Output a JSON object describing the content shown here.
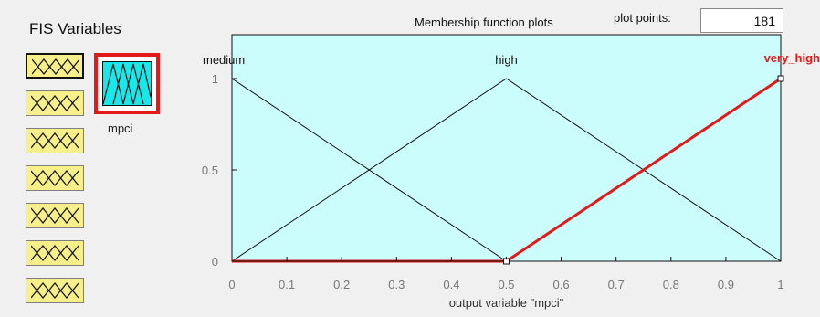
{
  "panel": {
    "title": "FIS Variables",
    "variable_buttons": [
      {
        "name": "input-variable-1"
      },
      {
        "name": "input-variable-2"
      },
      {
        "name": "input-variable-3"
      },
      {
        "name": "input-variable-4"
      },
      {
        "name": "input-variable-5"
      },
      {
        "name": "input-variable-6"
      },
      {
        "name": "input-variable-7"
      }
    ],
    "selected_variable": {
      "label": "mpci",
      "accent": "#e21a1a"
    }
  },
  "header": {
    "title": "Membership function plots",
    "plot_points_label": "plot points:",
    "plot_points_value": "181"
  },
  "chart_data": {
    "type": "line",
    "xlabel": "output variable \"mpci\"",
    "ylabel": "",
    "xlim": [
      0,
      1
    ],
    "ylim": [
      0,
      1
    ],
    "x_ticks": [
      0,
      0.1,
      0.2,
      0.3,
      0.4,
      0.5,
      0.6,
      0.7,
      0.8,
      0.9,
      1
    ],
    "y_ticks": [
      0,
      0.5,
      1
    ],
    "series": [
      {
        "name": "medium",
        "color": "#111111",
        "width": 1,
        "points": [
          [
            0,
            1
          ],
          [
            0.5,
            0
          ],
          [
            1,
            0
          ]
        ]
      },
      {
        "name": "high",
        "color": "#111111",
        "width": 1,
        "points": [
          [
            0,
            0
          ],
          [
            0.5,
            1
          ],
          [
            1,
            0
          ]
        ]
      },
      {
        "name": "very_high",
        "color": "#e21a1a",
        "width": 3,
        "points": [
          [
            0,
            0
          ],
          [
            0.5,
            0
          ],
          [
            1,
            1
          ]
        ]
      }
    ],
    "labels": [
      {
        "text": "medium",
        "x": 0,
        "y": 1,
        "highlight": false
      },
      {
        "text": "high",
        "x": 0.5,
        "y": 1,
        "highlight": false
      },
      {
        "text": "very_high",
        "x": 1,
        "y": 1,
        "highlight": true
      }
    ],
    "handles": [
      {
        "x": 0.5,
        "y": 0
      },
      {
        "x": 1,
        "y": 1
      }
    ],
    "grid": false,
    "colors": {
      "background": "#ccfdfd",
      "axis": "#111111",
      "tick_label": "#777777",
      "highlight": "#e21a1a"
    }
  }
}
